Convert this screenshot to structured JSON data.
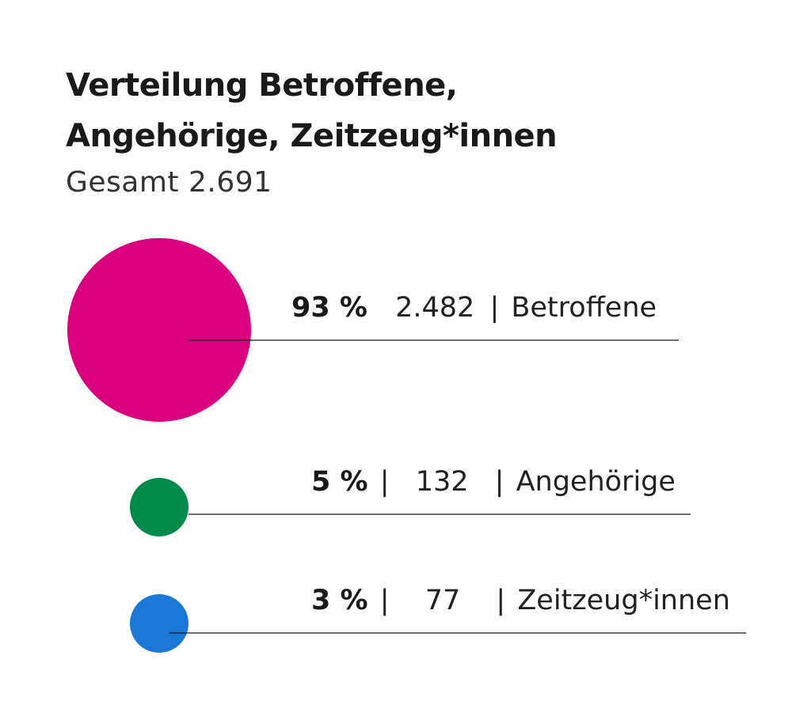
{
  "chart_data": {
    "type": "bubble",
    "title_lines": [
      "Verteilung Betroffene,",
      "Angehörige, Zeitzeug*innen"
    ],
    "subtitle": "Gesamt 2.691",
    "separator": "|",
    "items": [
      {
        "category": "Betroffene",
        "percent_label": "93 %",
        "count_label": "2.482",
        "percent": 93,
        "count": 2482,
        "color": "#db007d"
      },
      {
        "category": "Angehörige",
        "percent_label": "5 %",
        "count_label": "132",
        "percent": 5,
        "count": 132,
        "color": "#008a4a"
      },
      {
        "category": "Zeitzeug*innen",
        "percent_label": "3 %",
        "count_label": "77",
        "percent": 3,
        "count": 77,
        "color": "#1a78d8"
      }
    ]
  }
}
